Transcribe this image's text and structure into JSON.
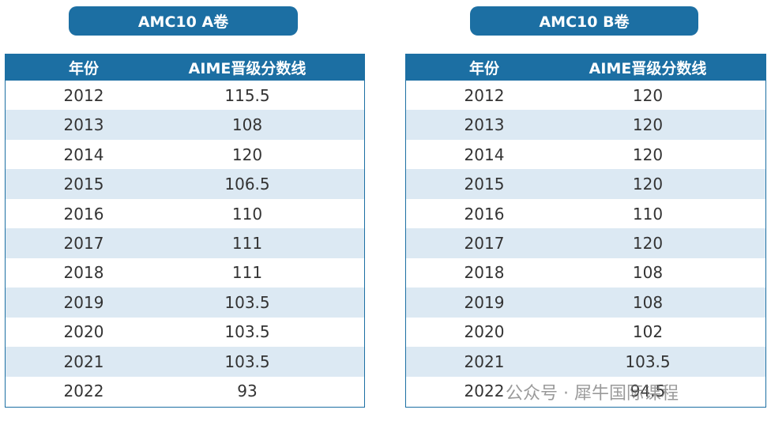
{
  "tables": [
    {
      "title": "AMC10 A卷",
      "header": [
        "年份",
        "AIME晋级分数线"
      ],
      "rows": [
        [
          "2012",
          "115.5"
        ],
        [
          "2013",
          "108"
        ],
        [
          "2014",
          "120"
        ],
        [
          "2015",
          "106.5"
        ],
        [
          "2016",
          "110"
        ],
        [
          "2017",
          "111"
        ],
        [
          "2018",
          "111"
        ],
        [
          "2019",
          "103.5"
        ],
        [
          "2020",
          "103.5"
        ],
        [
          "2021",
          "103.5"
        ],
        [
          "2022",
          "93"
        ]
      ]
    },
    {
      "title": "AMC10 B卷",
      "header": [
        "年份",
        "AIME晋级分数线"
      ],
      "rows": [
        [
          "2012",
          "120"
        ],
        [
          "2013",
          "120"
        ],
        [
          "2014",
          "120"
        ],
        [
          "2015",
          "120"
        ],
        [
          "2016",
          "110"
        ],
        [
          "2017",
          "120"
        ],
        [
          "2018",
          "108"
        ],
        [
          "2019",
          "108"
        ],
        [
          "2020",
          "102"
        ],
        [
          "2021",
          "103.5"
        ],
        [
          "2022",
          "94.5"
        ]
      ]
    }
  ],
  "watermark": "公众号 · 犀牛国际课程"
}
